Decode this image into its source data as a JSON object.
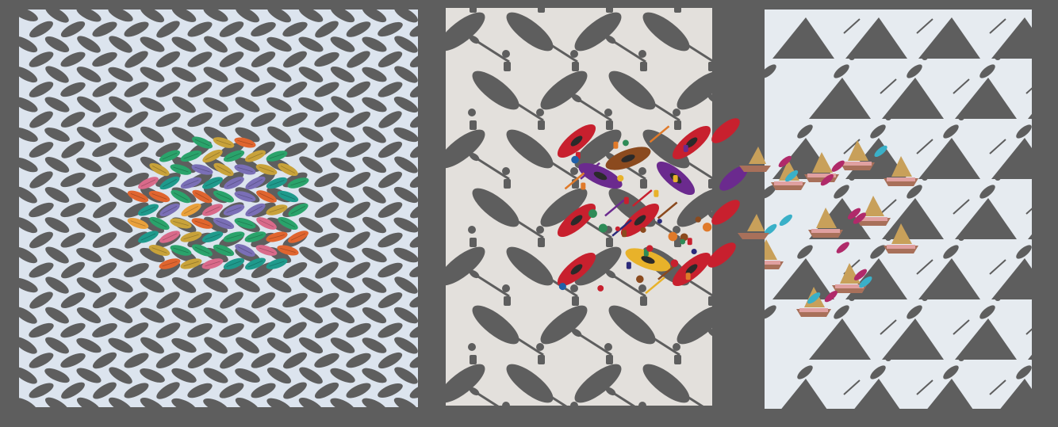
{
  "background": "#5e5e5e",
  "panels": [
    {
      "id": "panel-left",
      "pattern": "leaf-silhouettes",
      "base_color": "#dce4ee",
      "silhouette_color": "#5e5e5e",
      "cluster_palette": [
        "#7a6fb6",
        "#d96a8a",
        "#e9a03b",
        "#1f9a8c",
        "#e0652f",
        "#2aa36b",
        "#c8a23a"
      ]
    },
    {
      "id": "panel-mid",
      "pattern": "kayak-paddle-silhouettes",
      "base_color": "#e3e0dc",
      "silhouette_color": "#5e5e5e",
      "cluster_palette": [
        "#c8202e",
        "#6b2a8e",
        "#e8b22a",
        "#1f5fa8",
        "#8b4a1e",
        "#e07a2a",
        "#2e8b57",
        "#2b2a7a"
      ]
    },
    {
      "id": "panel-right",
      "pattern": "sailboat-silhouettes",
      "base_color": "#e6ebf0",
      "silhouette_color": "#5e5e5e",
      "cluster_palette": [
        "#c8a05a",
        "#a8705a",
        "#b02a6a",
        "#3ab0c8",
        "#e0a0a0",
        "#8a6a4a"
      ]
    }
  ]
}
